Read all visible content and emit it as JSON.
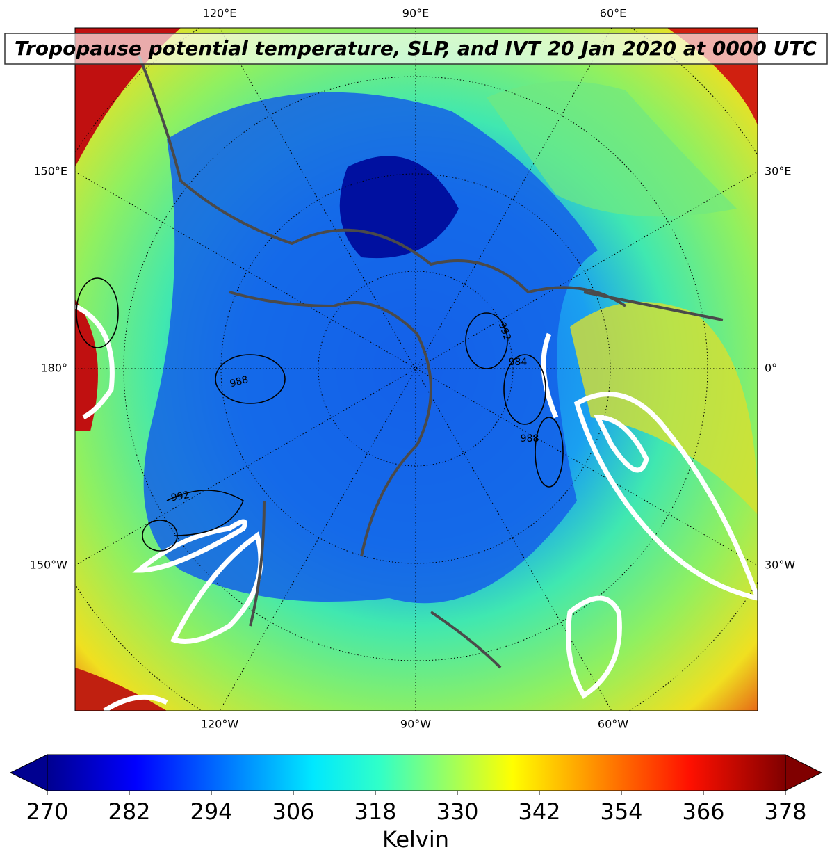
{
  "title": "Tropopause potential temperature, SLP, and IVT 20 Jan 2020 at 0000 UTC",
  "longitude_labels": {
    "top": [
      "120°E",
      "90°E",
      "60°E"
    ],
    "left": [
      "150°E",
      "180°",
      "150°W"
    ],
    "right": [
      "30°E",
      "0°",
      "30°W"
    ],
    "bottom": [
      "120°W",
      "90°W",
      "60°W"
    ]
  },
  "contour_labels": [
    "992",
    "988",
    "992",
    "984",
    "988"
  ],
  "colorbar": {
    "range": [
      270,
      378
    ],
    "ticks": [
      270,
      282,
      294,
      306,
      318,
      330,
      342,
      354,
      366,
      378
    ],
    "label": "Kelvin"
  }
}
